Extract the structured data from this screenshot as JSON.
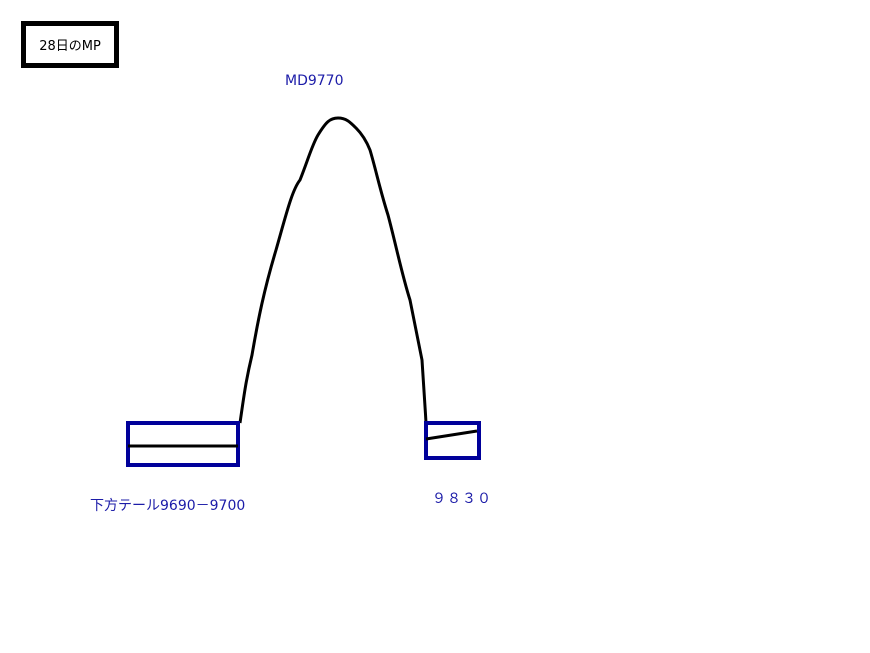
{
  "title": "28日のMP",
  "top_label": "MD9770",
  "lower_tail_label": "下方テール9690－9700",
  "right_label": "９８３０",
  "colors": {
    "text": "#1c1ca8",
    "box": "#00009a",
    "curve": "#000000"
  }
}
